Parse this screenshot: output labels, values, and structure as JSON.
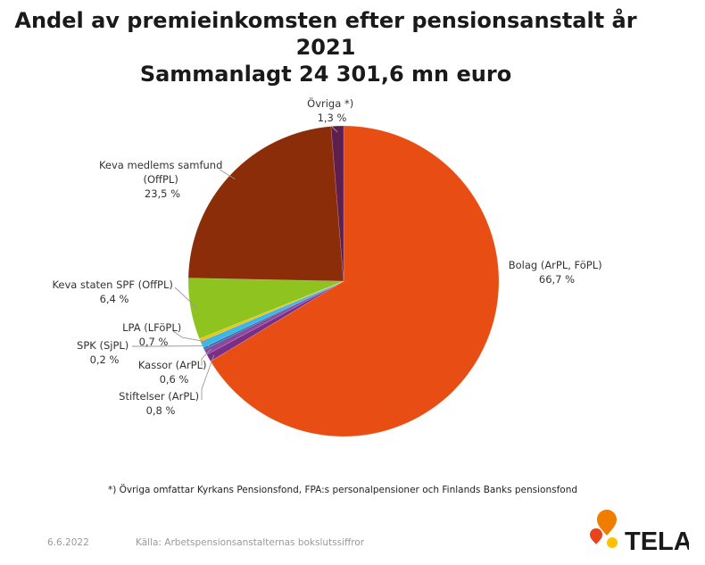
{
  "chart_data": {
    "type": "pie",
    "title": "Andel av premieinkomsten efter pensionsanstalt år 2021",
    "subtitle": "Sammanlagt 24 301,6 mn euro",
    "unit": "%",
    "start_angle_deg": 0,
    "direction": "clockwise",
    "slices": [
      {
        "name": "Bolag (ArPL, FöPL)",
        "value": 66.7,
        "label": "66,7 %",
        "color": "#e84e13"
      },
      {
        "name": "Stiftelser (ArPL)",
        "value": 0.8,
        "label": "0,8 %",
        "color": "#7b2e86"
      },
      {
        "name": "Kassor (ArPL)",
        "value": 0.6,
        "label": "0,6 %",
        "color": "#8a4a9e"
      },
      {
        "name": "SPK (SjPL)",
        "value": 0.2,
        "label": "0,2 %",
        "color": "#1a6fb0"
      },
      {
        "name": "LPA (LFöPL)",
        "value": 0.7,
        "label": "0,7 %",
        "color": "#3fb6e4"
      },
      {
        "name": "",
        "value": 0.3,
        "label": "",
        "color": "#f3c300"
      },
      {
        "name": "Keva staten SPF (OffPL)",
        "value": 6.4,
        "label": "6,4 %",
        "color": "#8fc31f"
      },
      {
        "name": "Keva medlems samfund (OffPL)",
        "value": 23.5,
        "label": "23,5 %",
        "color": "#8b2d08"
      },
      {
        "name": "Övriga *)",
        "value": 1.3,
        "label": "1,3 %",
        "color": "#5e1f4f"
      }
    ]
  },
  "callouts": [
    {
      "name_lines": [
        "Bolag (ArPL, FöPL)"
      ],
      "value": "66,7 %"
    },
    {
      "name_lines": [
        "Stiftelser (ArPL)"
      ],
      "value": "0,8 %"
    },
    {
      "name_lines": [
        "Kassor (ArPL)"
      ],
      "value": "0,6 %"
    },
    {
      "name_lines": [
        "SPK (SjPL)"
      ],
      "value": "0,2 %"
    },
    {
      "name_lines": [
        "LPA (LFöPL)"
      ],
      "value": "0,7 %"
    },
    {
      "name_lines": [
        "Keva staten SPF (OffPL)"
      ],
      "value": "6,4 %"
    },
    {
      "name_lines": [
        "Keva medlems samfund",
        "(OffPL)"
      ],
      "value": "23,5 %"
    },
    {
      "name_lines": [
        "Övriga *)"
      ],
      "value": "1,3 %"
    }
  ],
  "footnote": "*) Övriga omfattar Kyrkans Pensionsfond, FPA:s personalpensioner och Finlands Banks pensionsfond",
  "footer": {
    "date": "6.6.2022",
    "source": "Källa: Arbetspensionsanstalternas bokslutssiffror"
  },
  "logo": {
    "text": "TELA",
    "colors": {
      "orange": "#f07d00",
      "yellow": "#fcc200",
      "red": "#e8431c",
      "text": "#1a1a1a"
    }
  }
}
